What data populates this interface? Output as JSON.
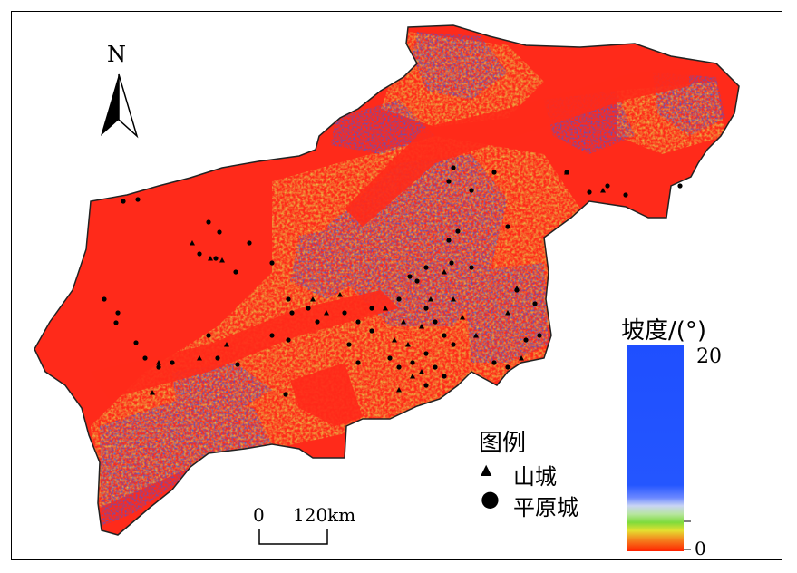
{
  "map": {
    "north_label": "N",
    "scale_bar": {
      "start_label": "0",
      "end_label": "120km"
    },
    "legend": {
      "title": "图例",
      "items": [
        {
          "symbol": "triangle",
          "label": "山城"
        },
        {
          "symbol": "dot",
          "label": "平原城"
        }
      ]
    },
    "color_ramp": {
      "title": "坡度/(°)",
      "max_label": "20",
      "min_label": "0",
      "colors": {
        "high": "#1f4fff",
        "mid": "#7edb3c",
        "low": "#ff2200"
      }
    },
    "regions": {
      "flat_color": "#ff2a1a",
      "hilly_color": "#2f5cf0",
      "transition_color": "#e8d050"
    }
  }
}
